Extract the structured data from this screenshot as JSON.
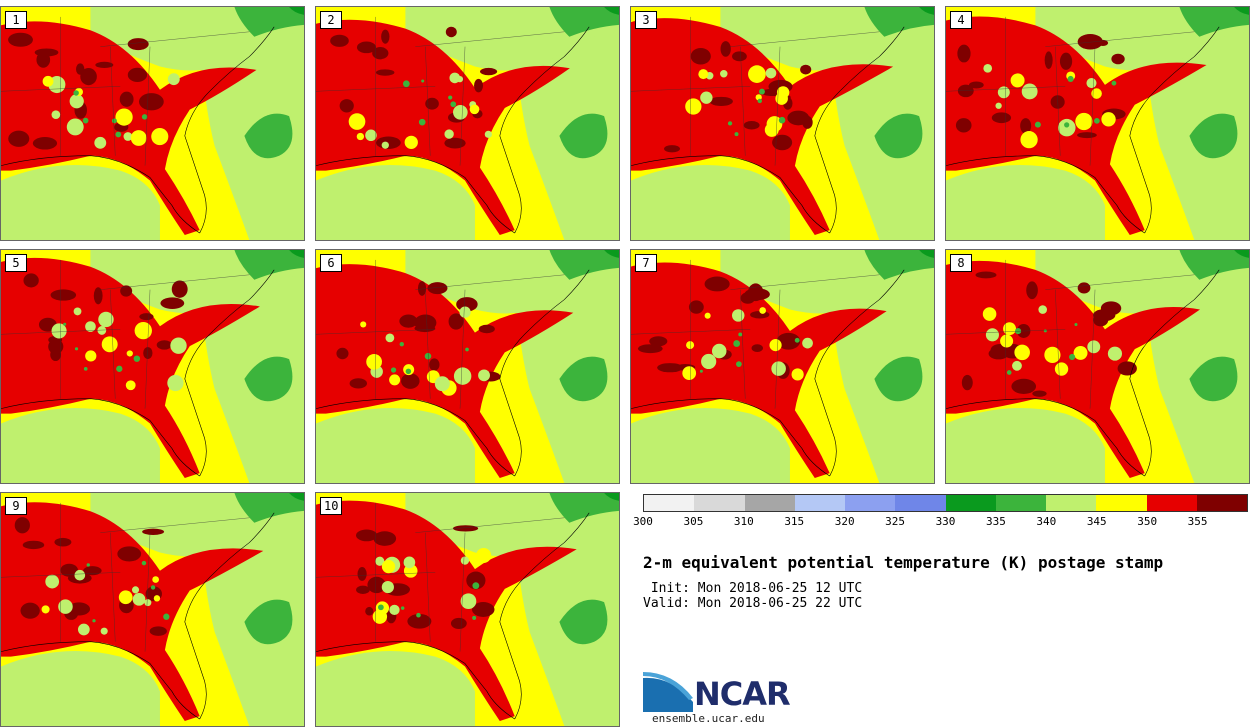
{
  "panels": [
    {
      "label": "1"
    },
    {
      "label": "2"
    },
    {
      "label": "3"
    },
    {
      "label": "4"
    },
    {
      "label": "5"
    },
    {
      "label": "6"
    },
    {
      "label": "7"
    },
    {
      "label": "8"
    },
    {
      "label": "9"
    },
    {
      "label": "10"
    }
  ],
  "colorbar": {
    "bins": [
      {
        "from": 300,
        "to": 305,
        "color": "#f2f2f2"
      },
      {
        "from": 305,
        "to": 310,
        "color": "#d9d9d9"
      },
      {
        "from": 310,
        "to": 315,
        "color": "#a6a6a6"
      },
      {
        "from": 315,
        "to": 320,
        "color": "#b4c8f5"
      },
      {
        "from": 320,
        "to": 325,
        "color": "#8ca0f0"
      },
      {
        "from": 325,
        "to": 330,
        "color": "#6f86e8"
      },
      {
        "from": 330,
        "to": 335,
        "color": "#0a9a1e"
      },
      {
        "from": 335,
        "to": 340,
        "color": "#3cb43c"
      },
      {
        "from": 340,
        "to": 345,
        "color": "#bff06e"
      },
      {
        "from": 345,
        "to": 350,
        "color": "#ffff00"
      },
      {
        "from": 350,
        "to": 355,
        "color": "#e60000"
      },
      {
        "from": 355,
        "to": 360,
        "color": "#7f0000"
      }
    ],
    "tick_labels": [
      "300",
      "305",
      "310",
      "315",
      "320",
      "325",
      "330",
      "335",
      "340",
      "345",
      "350",
      "355"
    ]
  },
  "title": "2-m equivalent potential temperature (K) postage stamp",
  "init": " Init: Mon 2018-06-25 12 UTC",
  "valid": "Valid: Mon 2018-06-25 22 UTC",
  "logo": {
    "text": "NCAR",
    "url": "ensemble.ucar.edu"
  }
}
